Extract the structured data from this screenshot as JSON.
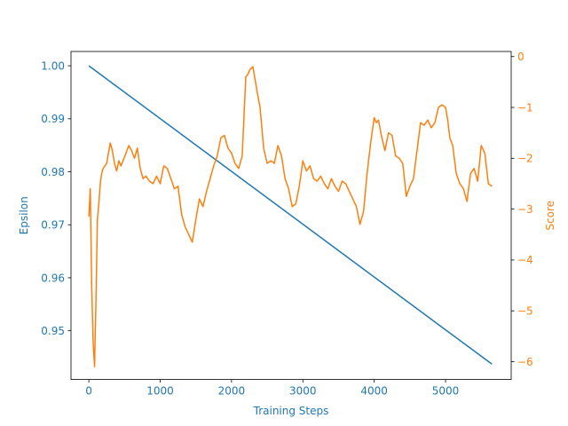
{
  "chart_data": {
    "type": "line",
    "title": "",
    "xlabel": "Training Steps",
    "ylabel_left": "Epsilon",
    "ylabel_right": "Score",
    "xlim": [
      -250,
      5920
    ],
    "ylim_left": [
      0.9408,
      1.0027
    ],
    "ylim_right": [
      -6.35,
      0.1
    ],
    "x_ticks": [
      0,
      1000,
      2000,
      3000,
      4000,
      5000
    ],
    "y_ticks_left": [
      0.95,
      0.96,
      0.97,
      0.98,
      0.99,
      1.0
    ],
    "y_ticks_left_labels": [
      "0.95",
      "0.96",
      "0.97",
      "0.98",
      "0.99",
      "1.00"
    ],
    "y_ticks_right": [
      -6,
      -5,
      -4,
      -3,
      -2,
      -1,
      0
    ],
    "grid": false,
    "legend": "none",
    "colors": {
      "epsilon": "#1f77b4",
      "score": "#ff7f0e",
      "axis": "#000000"
    },
    "series": [
      {
        "axis": "left",
        "x": [
          0,
          5650
        ],
        "values": [
          1.0,
          0.9437
        ]
      },
      {
        "axis": "right",
        "x": [
          0,
          20,
          40,
          60,
          80,
          100,
          120,
          140,
          160,
          180,
          200,
          250,
          300,
          330,
          360,
          390,
          420,
          450,
          480,
          520,
          560,
          600,
          640,
          680,
          720,
          760,
          800,
          850,
          900,
          950,
          1000,
          1050,
          1100,
          1150,
          1200,
          1250,
          1300,
          1350,
          1400,
          1450,
          1500,
          1550,
          1600,
          1650,
          1700,
          1750,
          1800,
          1850,
          1900,
          1950,
          2000,
          2050,
          2100,
          2150,
          2200,
          2230,
          2260,
          2300,
          2330,
          2360,
          2400,
          2450,
          2500,
          2550,
          2600,
          2650,
          2700,
          2750,
          2800,
          2850,
          2900,
          2950,
          3000,
          3050,
          3100,
          3150,
          3200,
          3250,
          3300,
          3350,
          3400,
          3450,
          3500,
          3550,
          3600,
          3650,
          3700,
          3750,
          3800,
          3850,
          3900,
          3950,
          4000,
          4030,
          4060,
          4100,
          4150,
          4200,
          4250,
          4300,
          4350,
          4400,
          4450,
          4500,
          4550,
          4600,
          4650,
          4700,
          4750,
          4800,
          4850,
          4900,
          4950,
          5000,
          5030,
          5060,
          5100,
          5150,
          5200,
          5250,
          5300,
          5350,
          5400,
          5450,
          5500,
          5550,
          5600,
          5650
        ],
        "values": [
          -3.15,
          -2.6,
          -4.5,
          -5.6,
          -6.1,
          -4.8,
          -3.2,
          -2.9,
          -2.5,
          -2.3,
          -2.2,
          -2.1,
          -1.7,
          -1.85,
          -2.1,
          -2.25,
          -2.05,
          -2.15,
          -2.05,
          -1.9,
          -1.75,
          -1.85,
          -2.0,
          -1.8,
          -2.2,
          -2.4,
          -2.35,
          -2.45,
          -2.5,
          -2.35,
          -2.5,
          -2.15,
          -2.2,
          -2.4,
          -2.6,
          -2.55,
          -3.1,
          -3.35,
          -3.5,
          -3.65,
          -3.2,
          -2.8,
          -2.95,
          -2.65,
          -2.4,
          -2.15,
          -1.95,
          -1.6,
          -1.55,
          -1.8,
          -1.9,
          -2.1,
          -2.2,
          -1.95,
          -0.4,
          -0.35,
          -0.25,
          -0.2,
          -0.45,
          -0.7,
          -1.0,
          -1.8,
          -2.1,
          -2.05,
          -2.1,
          -1.75,
          -1.95,
          -2.4,
          -2.6,
          -2.95,
          -2.9,
          -2.55,
          -2.05,
          -2.25,
          -2.15,
          -2.4,
          -2.45,
          -2.35,
          -2.5,
          -2.6,
          -2.4,
          -2.55,
          -2.65,
          -2.45,
          -2.5,
          -2.65,
          -2.8,
          -2.95,
          -3.3,
          -3.05,
          -2.3,
          -1.7,
          -1.2,
          -1.3,
          -1.25,
          -1.55,
          -1.85,
          -1.5,
          -1.55,
          -1.95,
          -2.0,
          -2.1,
          -2.75,
          -2.55,
          -2.4,
          -1.85,
          -1.3,
          -1.35,
          -1.25,
          -1.4,
          -1.3,
          -1.0,
          -0.95,
          -1.0,
          -1.25,
          -1.6,
          -1.75,
          -2.3,
          -2.5,
          -2.6,
          -2.85,
          -2.3,
          -2.2,
          -2.45,
          -1.75,
          -1.9,
          -2.5,
          -2.55
        ]
      }
    ]
  }
}
